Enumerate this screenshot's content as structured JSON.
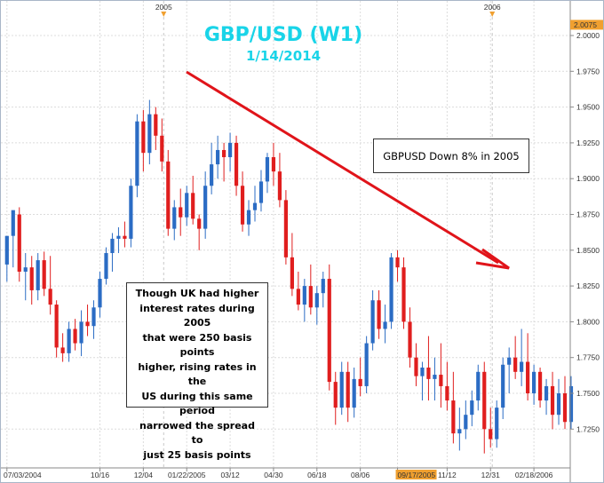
{
  "title": "GBP/USD (W1)",
  "subtitle": "1/14/2014",
  "annotations": {
    "down": "GBPUSD Down 8% in 2005",
    "spread_lines": [
      "Though UK had higher",
      "interest rates during 2005",
      "that were 250 basis points",
      "higher, rising rates in the",
      "US during this same period",
      "narrowed the spread to",
      "just 25 basis points"
    ]
  },
  "colors": {
    "up": "#2b6cc4",
    "down": "#e01e1e",
    "arrow": "#e0141a",
    "title": "#19d4e8",
    "marker": "#f0a030"
  },
  "chart_data": {
    "type": "candlestick",
    "title": "GBP/USD (W1)",
    "subtitle": "1/14/2014",
    "ylim": [
      1.705,
      2.008
    ],
    "yticks": [
      "2.0000",
      "1.9750",
      "1.9500",
      "1.9250",
      "1.9000",
      "1.8750",
      "1.8500",
      "1.8250",
      "1.8000",
      "1.7750",
      "1.7500",
      "1.7250"
    ],
    "ytick_values": [
      2.0,
      1.975,
      1.95,
      1.925,
      1.9,
      1.875,
      1.85,
      1.825,
      1.8,
      1.775,
      1.75,
      1.725
    ],
    "current_price": "2.0075",
    "current_price_value": 2.0075,
    "xlabels": [
      {
        "label": "07/03/2004",
        "index": 0
      },
      {
        "label": "10/16",
        "index": 15
      },
      {
        "label": "12/04",
        "index": 22
      },
      {
        "label": "01/22/2005",
        "index": 29
      },
      {
        "label": "03/12",
        "index": 36
      },
      {
        "label": "04/30",
        "index": 43
      },
      {
        "label": "06/18",
        "index": 50
      },
      {
        "label": "08/06",
        "index": 57
      },
      {
        "label": "09/17/2005",
        "index": 63,
        "highlight": true
      },
      {
        "label": "11/12",
        "index": 71
      },
      {
        "label": "12/31",
        "index": 78
      },
      {
        "label": "02/18/2006",
        "index": 85
      }
    ],
    "top_markers": [
      {
        "label": "2005",
        "index": 26
      },
      {
        "label": "2006",
        "index": 79
      }
    ],
    "grid": true,
    "candles": [
      [
        1.84,
        1.858,
        1.828,
        1.86
      ],
      [
        1.86,
        1.877,
        1.838,
        1.878
      ],
      [
        1.875,
        1.88,
        1.828,
        1.835
      ],
      [
        1.835,
        1.848,
        1.815,
        1.838
      ],
      [
        1.838,
        1.846,
        1.812,
        1.822
      ],
      [
        1.822,
        1.848,
        1.815,
        1.843
      ],
      [
        1.843,
        1.849,
        1.818,
        1.823
      ],
      [
        1.823,
        1.846,
        1.805,
        1.812
      ],
      [
        1.812,
        1.815,
        1.775,
        1.782
      ],
      [
        1.782,
        1.792,
        1.772,
        1.778
      ],
      [
        1.778,
        1.8,
        1.772,
        1.795
      ],
      [
        1.795,
        1.802,
        1.78,
        1.785
      ],
      [
        1.785,
        1.808,
        1.776,
        1.8
      ],
      [
        1.8,
        1.812,
        1.79,
        1.797
      ],
      [
        1.797,
        1.815,
        1.788,
        1.81
      ],
      [
        1.81,
        1.835,
        1.803,
        1.83
      ],
      [
        1.83,
        1.852,
        1.826,
        1.848
      ],
      [
        1.848,
        1.862,
        1.835,
        1.858
      ],
      [
        1.858,
        1.866,
        1.848,
        1.86
      ],
      [
        1.86,
        1.87,
        1.852,
        1.858
      ],
      [
        1.858,
        1.9,
        1.852,
        1.895
      ],
      [
        1.895,
        1.945,
        1.887,
        1.94
      ],
      [
        1.94,
        1.948,
        1.905,
        1.918
      ],
      [
        1.918,
        1.955,
        1.91,
        1.945
      ],
      [
        1.945,
        1.95,
        1.92,
        1.93
      ],
      [
        1.93,
        1.942,
        1.905,
        1.912
      ],
      [
        1.912,
        1.92,
        1.86,
        1.865
      ],
      [
        1.865,
        1.885,
        1.857,
        1.88
      ],
      [
        1.88,
        1.893,
        1.86,
        1.873
      ],
      [
        1.873,
        1.895,
        1.867,
        1.89
      ],
      [
        1.89,
        1.902,
        1.868,
        1.872
      ],
      [
        1.872,
        1.875,
        1.85,
        1.865
      ],
      [
        1.865,
        1.905,
        1.858,
        1.895
      ],
      [
        1.895,
        1.925,
        1.889,
        1.91
      ],
      [
        1.91,
        1.93,
        1.9,
        1.92
      ],
      [
        1.92,
        1.925,
        1.898,
        1.915
      ],
      [
        1.915,
        1.932,
        1.905,
        1.925
      ],
      [
        1.925,
        1.93,
        1.888,
        1.895
      ],
      [
        1.895,
        1.905,
        1.863,
        1.868
      ],
      [
        1.868,
        1.885,
        1.86,
        1.878
      ],
      [
        1.878,
        1.895,
        1.87,
        1.883
      ],
      [
        1.883,
        1.906,
        1.877,
        1.898
      ],
      [
        1.898,
        1.918,
        1.89,
        1.915
      ],
      [
        1.915,
        1.925,
        1.895,
        1.905
      ],
      [
        1.905,
        1.918,
        1.88,
        1.885
      ],
      [
        1.885,
        1.892,
        1.84,
        1.845
      ],
      [
        1.845,
        1.862,
        1.818,
        1.823
      ],
      [
        1.823,
        1.835,
        1.808,
        1.812
      ],
      [
        1.812,
        1.83,
        1.8,
        1.825
      ],
      [
        1.825,
        1.84,
        1.805,
        1.81
      ],
      [
        1.81,
        1.825,
        1.798,
        1.82
      ],
      [
        1.82,
        1.835,
        1.81,
        1.83
      ],
      [
        1.83,
        1.84,
        1.752,
        1.758
      ],
      [
        1.758,
        1.765,
        1.728,
        1.74
      ],
      [
        1.74,
        1.772,
        1.735,
        1.765
      ],
      [
        1.765,
        1.772,
        1.73,
        1.74
      ],
      [
        1.74,
        1.768,
        1.733,
        1.76
      ],
      [
        1.76,
        1.775,
        1.748,
        1.755
      ],
      [
        1.755,
        1.79,
        1.75,
        1.785
      ],
      [
        1.785,
        1.822,
        1.78,
        1.815
      ],
      [
        1.815,
        1.822,
        1.788,
        1.795
      ],
      [
        1.795,
        1.812,
        1.785,
        1.8
      ],
      [
        1.8,
        1.848,
        1.795,
        1.845
      ],
      [
        1.845,
        1.85,
        1.828,
        1.838
      ],
      [
        1.838,
        1.845,
        1.795,
        1.8
      ],
      [
        1.8,
        1.81,
        1.768,
        1.775
      ],
      [
        1.775,
        1.785,
        1.755,
        1.762
      ],
      [
        1.762,
        1.772,
        1.745,
        1.768
      ],
      [
        1.768,
        1.79,
        1.745,
        1.76
      ],
      [
        1.76,
        1.775,
        1.745,
        1.763
      ],
      [
        1.763,
        1.785,
        1.74,
        1.755
      ],
      [
        1.755,
        1.772,
        1.738,
        1.745
      ],
      [
        1.745,
        1.765,
        1.715,
        1.722
      ],
      [
        1.722,
        1.74,
        1.71,
        1.725
      ],
      [
        1.725,
        1.745,
        1.718,
        1.735
      ],
      [
        1.735,
        1.752,
        1.727,
        1.745
      ],
      [
        1.745,
        1.77,
        1.738,
        1.765
      ],
      [
        1.765,
        1.772,
        1.708,
        1.725
      ],
      [
        1.725,
        1.74,
        1.712,
        1.718
      ],
      [
        1.718,
        1.745,
        1.712,
        1.74
      ],
      [
        1.74,
        1.775,
        1.732,
        1.77
      ],
      [
        1.77,
        1.782,
        1.75,
        1.775
      ],
      [
        1.775,
        1.79,
        1.76,
        1.765
      ],
      [
        1.765,
        1.795,
        1.755,
        1.772
      ],
      [
        1.772,
        1.792,
        1.745,
        1.75
      ],
      [
        1.75,
        1.77,
        1.742,
        1.765
      ],
      [
        1.765,
        1.768,
        1.74,
        1.745
      ],
      [
        1.745,
        1.76,
        1.735,
        1.755
      ],
      [
        1.755,
        1.765,
        1.725,
        1.735
      ],
      [
        1.735,
        1.76,
        1.728,
        1.75
      ],
      [
        1.75,
        1.762,
        1.725,
        1.73
      ],
      [
        1.73,
        1.762,
        1.725,
        1.755
      ]
    ]
  }
}
